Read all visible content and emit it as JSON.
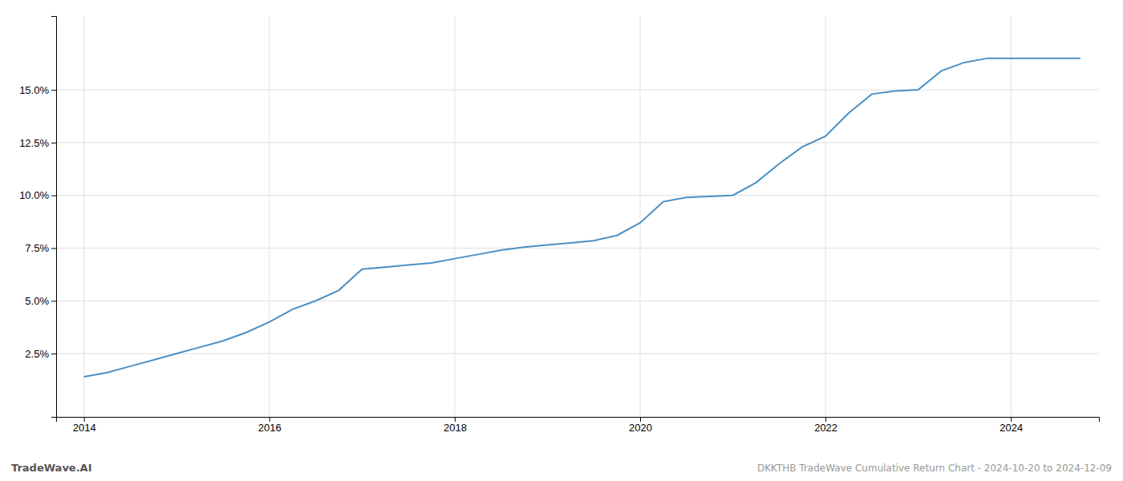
{
  "chart_data": {
    "type": "line",
    "title": "DKKTHB TradeWave Cumulative Return Chart - 2024-10-20 to 2024-12-09",
    "annotations": [
      "TradeWave.AI"
    ],
    "x": [
      2014.0,
      2014.25,
      2014.5,
      2014.75,
      2015.0,
      2015.25,
      2015.5,
      2015.75,
      2016.0,
      2016.25,
      2016.5,
      2016.75,
      2017.0,
      2017.25,
      2017.5,
      2017.75,
      2018.0,
      2018.25,
      2018.5,
      2018.75,
      2019.0,
      2019.25,
      2019.5,
      2019.75,
      2020.0,
      2020.25,
      2020.5,
      2020.75,
      2021.0,
      2021.25,
      2021.5,
      2021.75,
      2022.0,
      2022.25,
      2022.5,
      2022.75,
      2023.0,
      2023.25,
      2023.5,
      2023.75,
      2024.0,
      2024.25,
      2024.5,
      2024.75
    ],
    "values": [
      1.4,
      1.6,
      1.9,
      2.2,
      2.5,
      2.8,
      3.1,
      3.5,
      4.0,
      4.6,
      5.0,
      5.5,
      6.5,
      6.6,
      6.7,
      6.8,
      7.0,
      7.2,
      7.4,
      7.55,
      7.65,
      7.75,
      7.85,
      8.1,
      8.7,
      9.7,
      9.9,
      9.95,
      10.0,
      10.6,
      11.5,
      12.3,
      12.8,
      13.9,
      14.8,
      14.95,
      15.0,
      15.9,
      16.3,
      16.5,
      16.5,
      16.5,
      16.5,
      16.5
    ],
    "color": "#4a90c4",
    "xlim": [
      2013.7,
      2024.95
    ],
    "ylim": [
      -0.5,
      18.5
    ],
    "xticks": [
      2014,
      2016,
      2018,
      2020,
      2022,
      2024
    ],
    "yticks": [
      {
        "value": 2.5,
        "label": "2.5%"
      },
      {
        "value": 5.0,
        "label": "5.0%"
      },
      {
        "value": 7.5,
        "label": "7.5%"
      },
      {
        "value": 10.0,
        "label": "10.0%"
      },
      {
        "value": 12.5,
        "label": "12.5%"
      },
      {
        "value": 15.0,
        "label": "15.0%"
      }
    ],
    "grid": true
  }
}
